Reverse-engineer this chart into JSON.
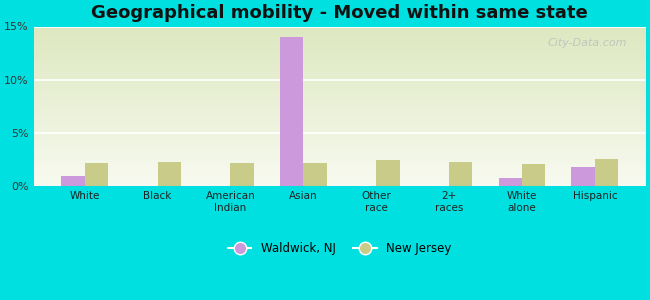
{
  "title": "Geographical mobility - Moved within same state",
  "categories": [
    "White",
    "Black",
    "American\nIndian",
    "Asian",
    "Other\nrace",
    "2+\nraces",
    "White\nalone",
    "Hispanic"
  ],
  "waldwick_values": [
    1.0,
    0.0,
    0.0,
    14.0,
    0.0,
    0.0,
    0.8,
    1.8
  ],
  "nj_values": [
    2.2,
    2.3,
    2.2,
    2.2,
    2.5,
    2.3,
    2.1,
    2.6
  ],
  "waldwick_color": "#cc99dd",
  "nj_color": "#c8cc88",
  "background_color": "#00e0e0",
  "plot_bg_top": "#dde8c0",
  "plot_bg_bottom": "#f8faf0",
  "ylim_max": 15,
  "yticks": [
    0,
    5,
    10,
    15
  ],
  "ytick_labels": [
    "0%",
    "5%",
    "10%",
    "15%"
  ],
  "legend_waldwick": "Waldwick, NJ",
  "legend_nj": "New Jersey",
  "bar_width": 0.32,
  "title_fontsize": 13,
  "watermark": "City-Data.com"
}
